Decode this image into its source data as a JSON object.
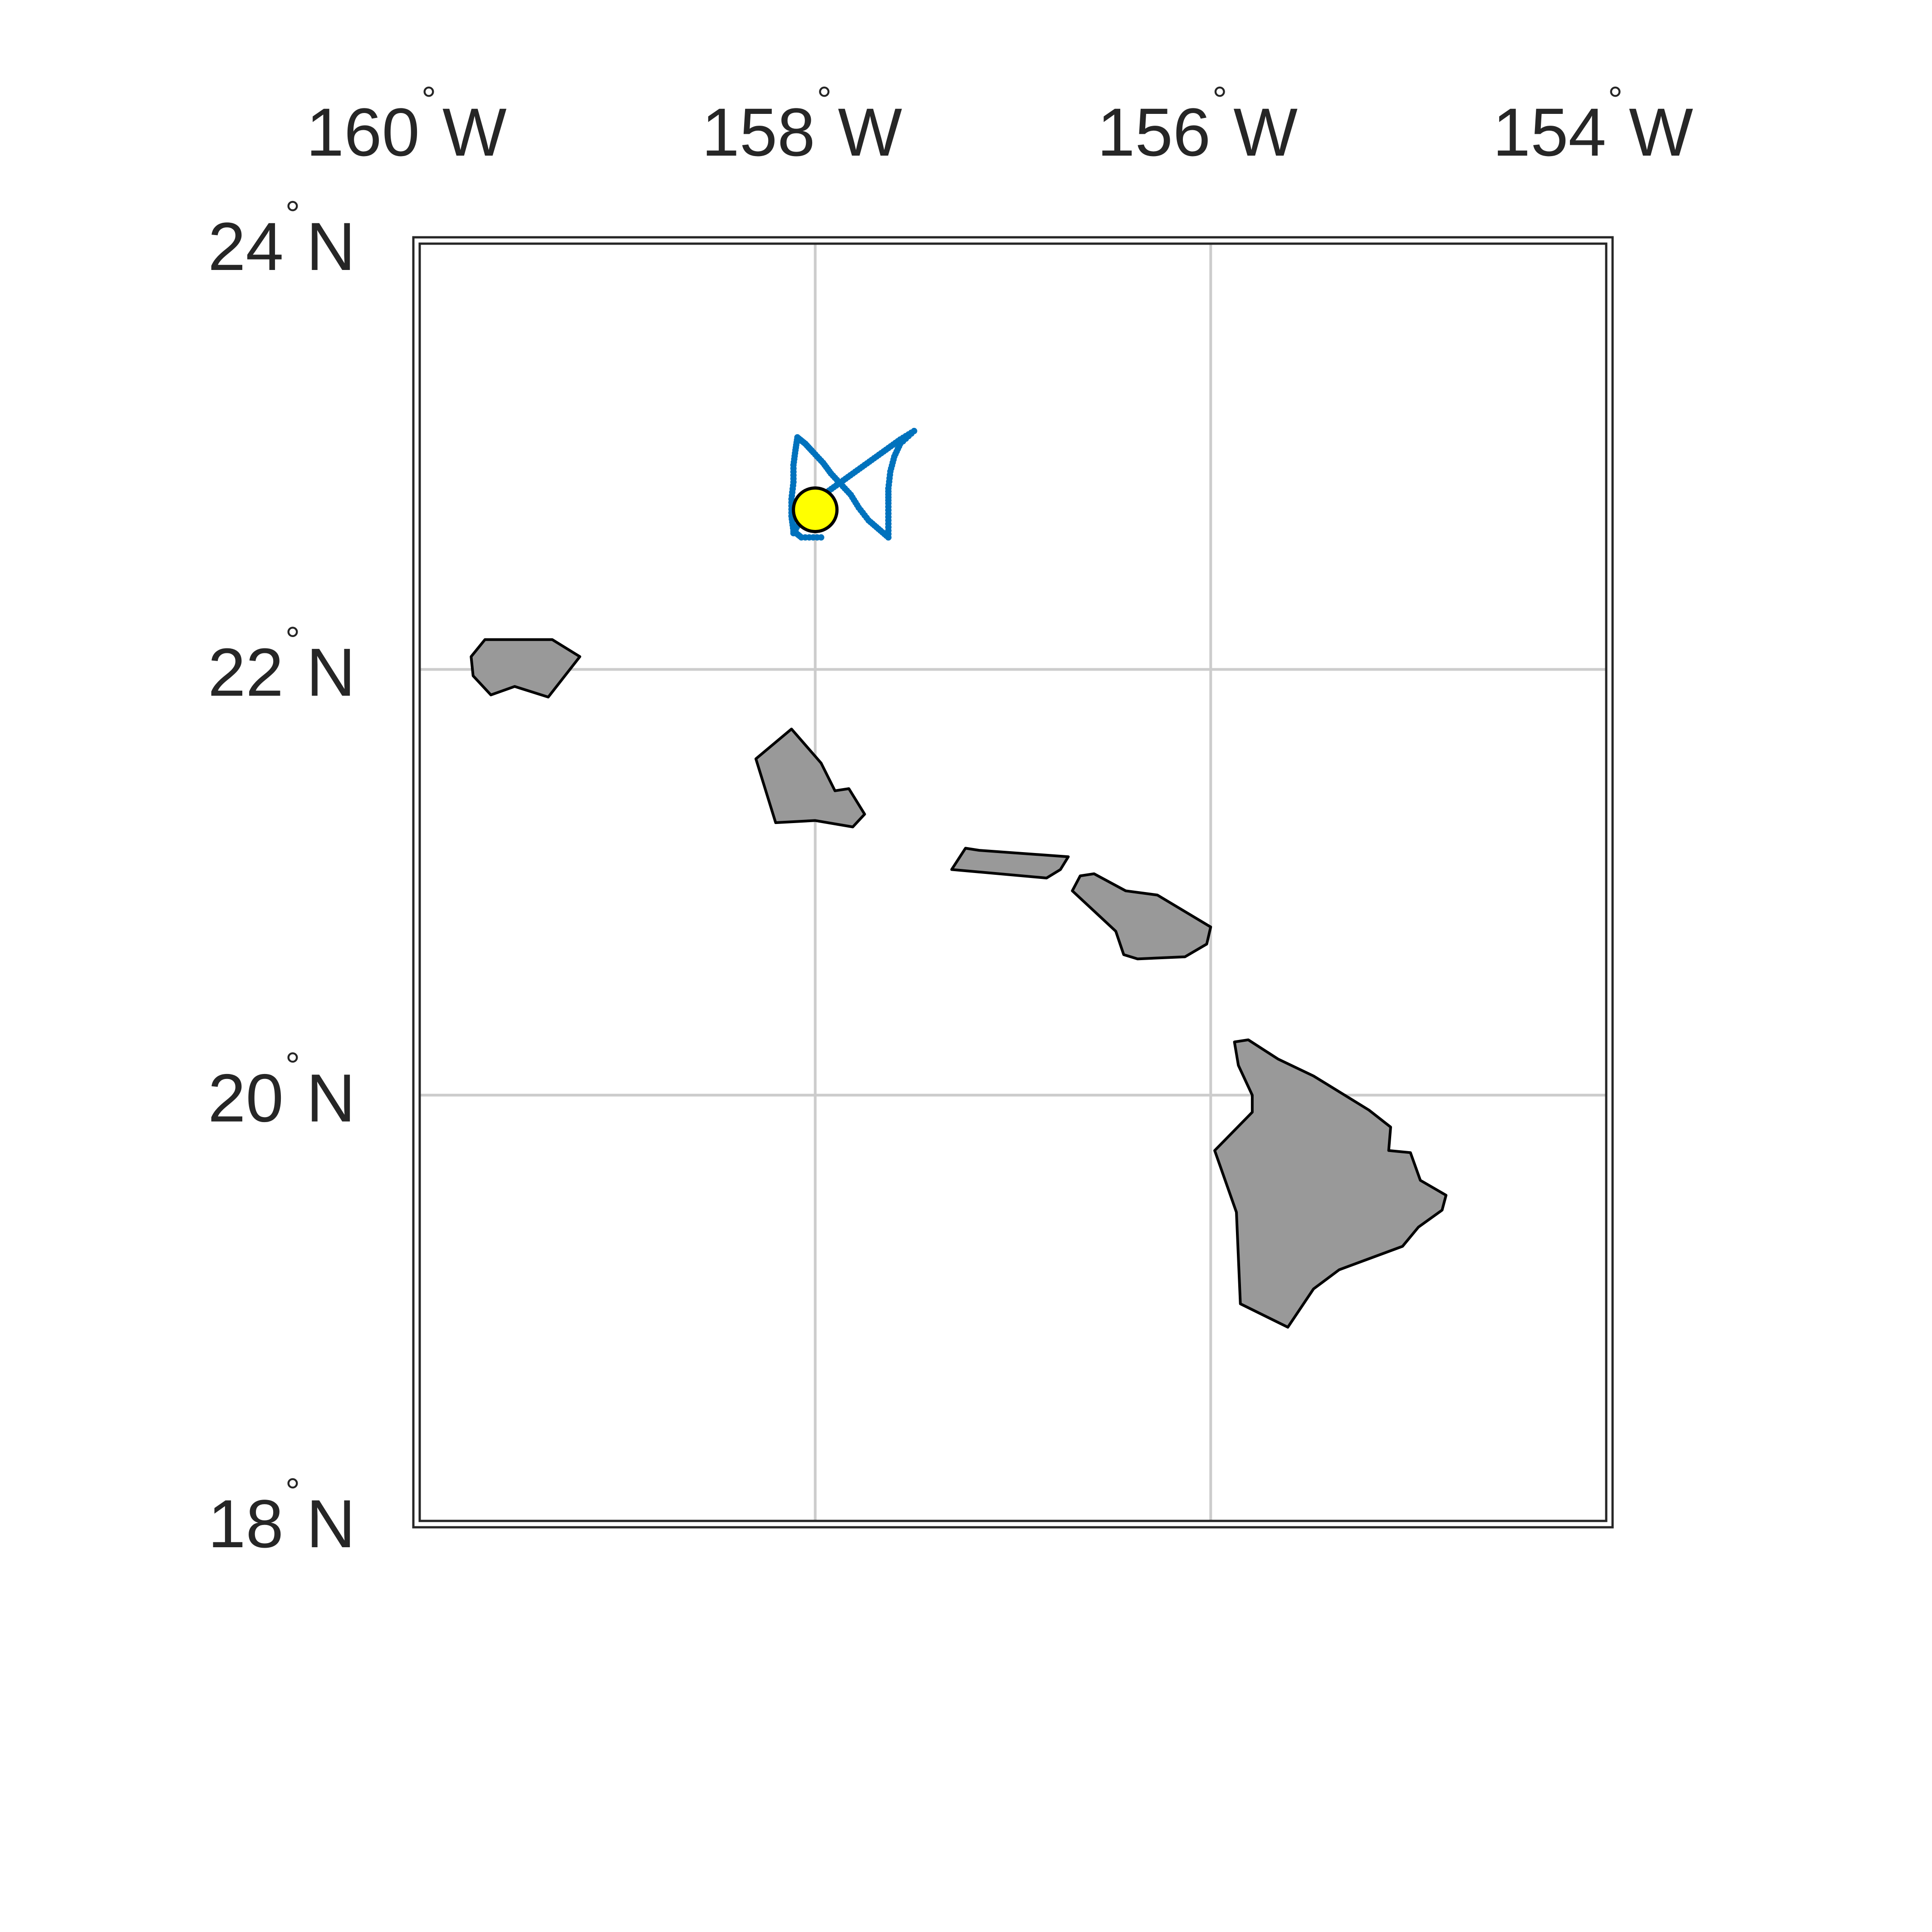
{
  "map": {
    "extent": {
      "lon": [
        -160,
        -154
      ],
      "lat": [
        18,
        24
      ]
    },
    "grid_lon": [
      -158,
      -156
    ],
    "grid_lat": [
      20,
      22
    ],
    "lon_ticks": [
      {
        "deg": "160",
        "hemi": "W",
        "value": -160
      },
      {
        "deg": "158",
        "hemi": "W",
        "value": -158
      },
      {
        "deg": "156",
        "hemi": "W",
        "value": -156
      },
      {
        "deg": "154",
        "hemi": "W",
        "value": -154
      }
    ],
    "lat_ticks": [
      {
        "deg": "24",
        "hemi": "N",
        "value": 24
      },
      {
        "deg": "22",
        "hemi": "N",
        "value": 22
      },
      {
        "deg": "20",
        "hemi": "N",
        "value": 20
      },
      {
        "deg": "18",
        "hemi": "N",
        "value": 18
      }
    ],
    "degree_symbol": "°",
    "colors": {
      "land": "#999999",
      "coast": "#000000",
      "grid": "#cccccc",
      "frame": "#262626",
      "track": "#0072bd",
      "station": "#ffff00"
    },
    "islands": [
      {
        "name": "kauai",
        "coords": [
          [
            -159.67,
            22.14
          ],
          [
            -159.33,
            22.14
          ],
          [
            -159.19,
            22.06
          ],
          [
            -159.35,
            21.87
          ],
          [
            -159.52,
            21.92
          ],
          [
            -159.64,
            21.88
          ],
          [
            -159.73,
            21.97
          ],
          [
            -159.74,
            22.06
          ]
        ]
      },
      {
        "name": "oahu",
        "coords": [
          [
            -158.3,
            21.58
          ],
          [
            -158.12,
            21.72
          ],
          [
            -157.97,
            21.56
          ],
          [
            -157.9,
            21.43
          ],
          [
            -157.83,
            21.44
          ],
          [
            -157.75,
            21.32
          ],
          [
            -157.81,
            21.26
          ],
          [
            -158.0,
            21.29
          ],
          [
            -158.2,
            21.28
          ]
        ]
      },
      {
        "name": "molokai",
        "coords": [
          [
            -157.31,
            21.06
          ],
          [
            -157.24,
            21.16
          ],
          [
            -157.17,
            21.15
          ],
          [
            -156.72,
            21.12
          ],
          [
            -156.76,
            21.06
          ],
          [
            -156.83,
            21.02
          ]
        ]
      },
      {
        "name": "maui",
        "coords": [
          [
            -156.7,
            20.96
          ],
          [
            -156.66,
            21.03
          ],
          [
            -156.59,
            21.04
          ],
          [
            -156.43,
            20.96
          ],
          [
            -156.27,
            20.94
          ],
          [
            -156.0,
            20.79
          ],
          [
            -156.02,
            20.71
          ],
          [
            -156.13,
            20.65
          ],
          [
            -156.37,
            20.64
          ],
          [
            -156.44,
            20.66
          ],
          [
            -156.48,
            20.77
          ]
        ]
      },
      {
        "name": "hawaii",
        "coords": [
          [
            -155.88,
            20.25
          ],
          [
            -155.81,
            20.26
          ],
          [
            -155.66,
            20.17
          ],
          [
            -155.48,
            20.09
          ],
          [
            -155.2,
            19.93
          ],
          [
            -155.09,
            19.85
          ],
          [
            -155.1,
            19.74
          ],
          [
            -154.99,
            19.73
          ],
          [
            -154.94,
            19.6
          ],
          [
            -154.81,
            19.53
          ],
          [
            -154.83,
            19.46
          ],
          [
            -154.95,
            19.38
          ],
          [
            -155.03,
            19.29
          ],
          [
            -155.35,
            19.18
          ],
          [
            -155.48,
            19.09
          ],
          [
            -155.61,
            18.91
          ],
          [
            -155.85,
            19.02
          ],
          [
            -155.87,
            19.45
          ],
          [
            -155.98,
            19.74
          ],
          [
            -155.79,
            19.92
          ],
          [
            -155.79,
            20.0
          ],
          [
            -155.86,
            20.14
          ]
        ]
      }
    ],
    "station": {
      "lon": -158.0,
      "lat": 22.75
    },
    "glider_track": [
      [
        -157.97,
        22.62
      ],
      [
        -158.07,
        22.62
      ],
      [
        -158.11,
        22.65
      ],
      [
        -158.12,
        22.72
      ],
      [
        -158.12,
        22.8
      ],
      [
        -158.11,
        22.88
      ],
      [
        -158.11,
        22.96
      ],
      [
        -158.1,
        23.03
      ],
      [
        -158.09,
        23.09
      ],
      [
        -158.05,
        23.06
      ],
      [
        -158.01,
        23.02
      ],
      [
        -157.96,
        22.97
      ],
      [
        -157.92,
        22.92
      ],
      [
        -157.87,
        22.87
      ],
      [
        -157.82,
        22.82
      ],
      [
        -157.78,
        22.76
      ],
      [
        -157.73,
        22.7
      ],
      [
        -157.68,
        22.66
      ],
      [
        -157.63,
        22.62
      ],
      [
        -157.63,
        22.7
      ],
      [
        -157.63,
        22.78
      ],
      [
        -157.63,
        22.85
      ],
      [
        -157.62,
        22.93
      ],
      [
        -157.6,
        23.0
      ],
      [
        -157.57,
        23.06
      ],
      [
        -157.5,
        23.12
      ],
      [
        -157.57,
        23.08
      ],
      [
        -157.63,
        23.04
      ],
      [
        -157.69,
        23.0
      ],
      [
        -157.75,
        22.96
      ],
      [
        -157.81,
        22.92
      ],
      [
        -157.87,
        22.88
      ],
      [
        -157.93,
        22.84
      ],
      [
        -157.98,
        22.79
      ],
      [
        -158.03,
        22.74
      ],
      [
        -158.08,
        22.69
      ],
      [
        -158.11,
        22.64
      ]
    ]
  }
}
